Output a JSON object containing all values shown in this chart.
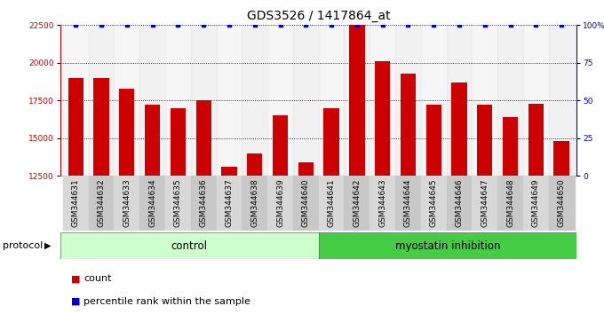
{
  "title": "GDS3526 / 1417864_at",
  "samples": [
    "GSM344631",
    "GSM344632",
    "GSM344633",
    "GSM344634",
    "GSM344635",
    "GSM344636",
    "GSM344637",
    "GSM344638",
    "GSM344639",
    "GSM344640",
    "GSM344641",
    "GSM344642",
    "GSM344643",
    "GSM344644",
    "GSM344645",
    "GSM344646",
    "GSM344647",
    "GSM344648",
    "GSM344649",
    "GSM344650"
  ],
  "counts": [
    19000,
    19000,
    18300,
    17200,
    17000,
    17500,
    13100,
    14000,
    16500,
    13400,
    17000,
    22500,
    20100,
    19300,
    17200,
    18700,
    17200,
    16400,
    17300,
    14800
  ],
  "bar_color": "#cc0000",
  "dot_color": "#0000cc",
  "ylim": [
    12500,
    22500
  ],
  "yticks": [
    12500,
    15000,
    17500,
    20000,
    22500
  ],
  "bg_color": "#ffffff",
  "title_fontsize": 10,
  "tick_fontsize": 6.5,
  "bar_width": 0.6,
  "control_color": "#ccffcc",
  "myo_color": "#44cc44",
  "protocol_label": "protocol",
  "n_control": 10,
  "n_myo": 10
}
